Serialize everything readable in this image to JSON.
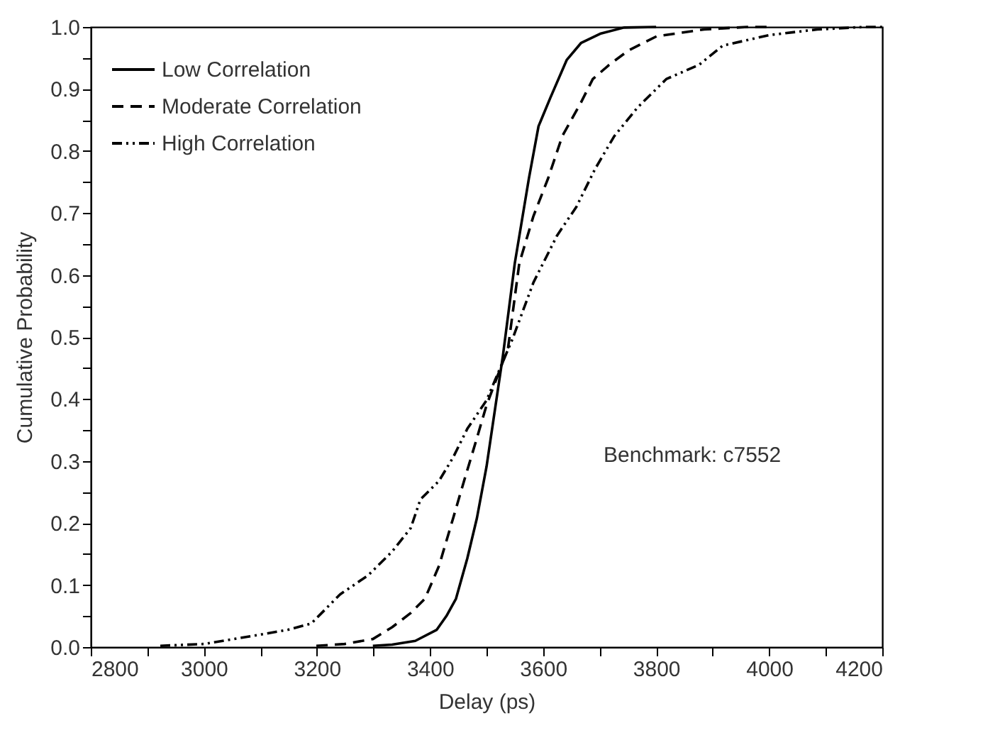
{
  "chart_data": {
    "type": "line",
    "xlabel": "Delay (ps)",
    "ylabel": "Cumulative Probability",
    "annotations": [
      "Benchmark: c7552"
    ],
    "xlim": [
      2800,
      4200
    ],
    "xticks": [
      2800,
      {
        "value": 2900,
        "label": null
      },
      3000,
      {
        "value": 3100,
        "label": null
      },
      3200,
      {
        "value": 3300,
        "label": null
      },
      3400,
      {
        "value": 3500,
        "label": null
      },
      3600,
      {
        "value": 3700,
        "label": null
      },
      3800,
      {
        "value": 3900,
        "label": null
      },
      4000,
      {
        "value": 4100,
        "label": null
      },
      4200
    ],
    "ylim": [
      0,
      1
    ],
    "yticks": [
      {
        "value": 0,
        "label": "0.0"
      },
      {
        "value": 0.05,
        "label": null
      },
      0.1,
      {
        "value": 0.15,
        "label": null
      },
      0.2,
      {
        "value": 0.25,
        "label": null
      },
      0.3,
      {
        "value": 0.35,
        "label": null
      },
      0.4,
      {
        "value": 0.45,
        "label": null
      },
      0.5,
      {
        "value": 0.55,
        "label": null
      },
      0.6,
      {
        "value": 0.65,
        "label": null
      },
      0.7,
      {
        "value": 0.75,
        "label": null
      },
      0.8,
      {
        "value": 0.85,
        "label": null
      },
      0.9,
      {
        "value": 0.95,
        "label": null
      },
      {
        "value": 1,
        "label": "1.0"
      }
    ],
    "grid": false,
    "legend": "top left",
    "marker": "none",
    "series": [
      {
        "name": "Low Correlation",
        "color": "#000000",
        "line_style": "solid",
        "x": [
          3299,
          3333,
          3374,
          3412,
          3429,
          3446,
          3466,
          3483,
          3500,
          3529,
          3550,
          3575,
          3592,
          3613,
          3642,
          3667,
          3701,
          3743,
          3800
        ],
        "values": [
          0.002,
          0.004,
          0.01,
          0.028,
          0.05,
          0.078,
          0.143,
          0.208,
          0.291,
          0.47,
          0.619,
          0.756,
          0.84,
          0.886,
          0.947,
          0.974,
          0.989,
          0.999,
          1.0
        ]
      },
      {
        "name": "Moderate Correlation",
        "color": "#000000",
        "line_style": "dashed",
        "x": [
          3199,
          3249,
          3299,
          3333,
          3366,
          3391,
          3416,
          3441,
          3458,
          3483,
          3500,
          3538,
          3558,
          3583,
          3609,
          3634,
          3667,
          3688,
          3717,
          3751,
          3801,
          3885,
          3961,
          4000
        ],
        "values": [
          0.002,
          0.005,
          0.013,
          0.032,
          0.055,
          0.078,
          0.131,
          0.208,
          0.261,
          0.337,
          0.39,
          0.482,
          0.619,
          0.695,
          0.756,
          0.824,
          0.878,
          0.916,
          0.939,
          0.962,
          0.985,
          0.996,
          1.0,
          1.0
        ]
      },
      {
        "name": "High Correlation",
        "color": "#000000",
        "line_style": "dotted",
        "x": [
          2923,
          3000,
          3099,
          3149,
          3190,
          3241,
          3291,
          3333,
          3366,
          3383,
          3416,
          3441,
          3466,
          3500,
          3546,
          3583,
          3625,
          3659,
          3692,
          3726,
          3767,
          3818,
          3876,
          3918,
          4001,
          4085,
          4168,
          4200
        ],
        "values": [
          0.002,
          0.005,
          0.02,
          0.028,
          0.038,
          0.085,
          0.116,
          0.154,
          0.192,
          0.238,
          0.268,
          0.306,
          0.352,
          0.398,
          0.497,
          0.588,
          0.664,
          0.71,
          0.771,
          0.824,
          0.87,
          0.916,
          0.939,
          0.97,
          0.987,
          0.996,
          1.0,
          1.0
        ]
      }
    ]
  }
}
